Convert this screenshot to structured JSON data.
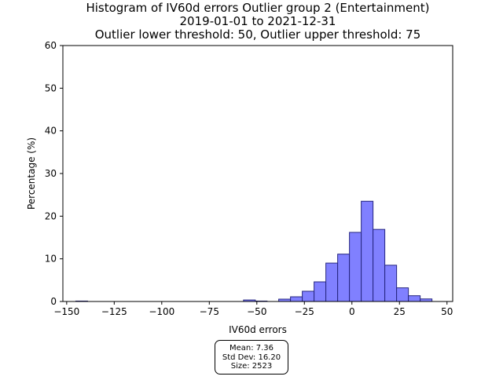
{
  "chart_data": {
    "type": "bar",
    "title_lines": [
      "Histogram of IV60d errors Outlier group 2 (Entertainment)",
      "2019-01-01 to 2021-12-31",
      "Outlier lower threshold: 50, Outlier upper threshold: 75"
    ],
    "xlabel": "IV60d errors",
    "ylabel": "Percentage (%)",
    "xlim": [
      -152,
      53
    ],
    "ylim": [
      0,
      60
    ],
    "xticks": [
      -150,
      -125,
      -100,
      -75,
      -50,
      -25,
      0,
      25,
      50
    ],
    "xtick_labels": [
      "−150",
      "−125",
      "−100",
      "−75",
      "−50",
      "−25",
      "0",
      "25",
      "50"
    ],
    "yticks": [
      0,
      10,
      20,
      30,
      40,
      50,
      60
    ],
    "ytick_labels": [
      "0",
      "10",
      "20",
      "30",
      "40",
      "50",
      "60"
    ],
    "bin_width": 6.2,
    "bins": [
      {
        "x0": -145.2,
        "value": 0.1
      },
      {
        "x0": -57.0,
        "value": 0.35
      },
      {
        "x0": -50.8,
        "value": 0.1
      },
      {
        "x0": -38.5,
        "value": 0.55
      },
      {
        "x0": -32.3,
        "value": 1.1
      },
      {
        "x0": -26.1,
        "value": 2.4
      },
      {
        "x0": -19.9,
        "value": 4.6
      },
      {
        "x0": -13.7,
        "value": 9.0
      },
      {
        "x0": -7.5,
        "value": 11.1
      },
      {
        "x0": -1.3,
        "value": 16.2
      },
      {
        "x0": 4.9,
        "value": 23.5
      },
      {
        "x0": 11.1,
        "value": 16.9
      },
      {
        "x0": 17.3,
        "value": 8.5
      },
      {
        "x0": 23.5,
        "value": 3.2
      },
      {
        "x0": 29.7,
        "value": 1.35
      },
      {
        "x0": 35.9,
        "value": 0.6
      }
    ],
    "bar_fill": "#8080ff",
    "bar_edge": "#262680",
    "grid": false
  },
  "stats": {
    "mean": "Mean: 7.36",
    "std": "Std Dev: 16.20",
    "size": "Size: 2523"
  }
}
